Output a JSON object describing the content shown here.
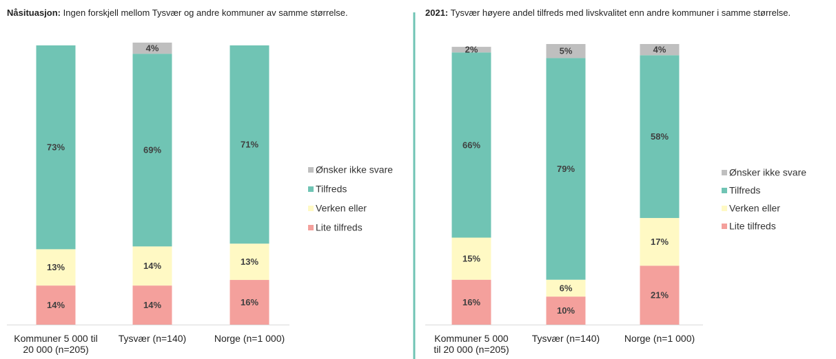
{
  "chart_data": [
    {
      "type": "bar",
      "stacked": true,
      "title_prefix": "Nåsituasjon:",
      "title": "Ingen forskjell mellom Tysvær og andre kommuner av samme størrelse.",
      "categories": [
        "Kommuner 5 000 til 20 000 (n=205)",
        "Tysvær (n=140)",
        "Norge (n=1 000)"
      ],
      "ylim": [
        0,
        100
      ],
      "legend": "right",
      "series": [
        {
          "name": "Lite tilfreds",
          "color": "#f4a09c",
          "values": [
            14,
            14,
            16
          ],
          "value_labels": [
            "14%",
            "14%",
            "16%"
          ]
        },
        {
          "name": "Verken eller",
          "color": "#fff9c4",
          "values": [
            13,
            14,
            13
          ],
          "value_labels": [
            "13%",
            "14%",
            "13%"
          ]
        },
        {
          "name": "Tilfreds",
          "color": "#70c4b4",
          "values": [
            73,
            69,
            71
          ],
          "value_labels": [
            "73%",
            "69%",
            "71%"
          ]
        },
        {
          "name": "Ønsker ikke svare",
          "color": "#bfbfbf",
          "values": [
            0,
            4,
            0
          ],
          "value_labels": [
            null,
            "4%",
            null
          ]
        }
      ]
    },
    {
      "type": "bar",
      "stacked": true,
      "title_prefix": "2021:",
      "title": "Tysvær høyere andel tilfreds med livskvalitet enn andre kommuner i samme størrelse.",
      "categories": [
        "Kommuner 5 000 til 20 000 (n=205)",
        "Tysvær (n=140)",
        "Norge (n=1 000)"
      ],
      "ylim": [
        0,
        100
      ],
      "legend": "right",
      "series": [
        {
          "name": "Lite tilfreds",
          "color": "#f4a09c",
          "values": [
            16,
            10,
            21
          ],
          "value_labels": [
            "16%",
            "10%",
            "21%"
          ]
        },
        {
          "name": "Verken eller",
          "color": "#fff9c4",
          "values": [
            15,
            6,
            17
          ],
          "value_labels": [
            "15%",
            "6%",
            "17%"
          ]
        },
        {
          "name": "Tilfreds",
          "color": "#70c4b4",
          "values": [
            66,
            79,
            58
          ],
          "value_labels": [
            "66%",
            "79%",
            "58%"
          ]
        },
        {
          "name": "Ønsker ikke svare",
          "color": "#bfbfbf",
          "values": [
            2,
            5,
            4
          ],
          "value_labels": [
            "2%",
            "5%",
            "4%"
          ]
        }
      ]
    }
  ]
}
